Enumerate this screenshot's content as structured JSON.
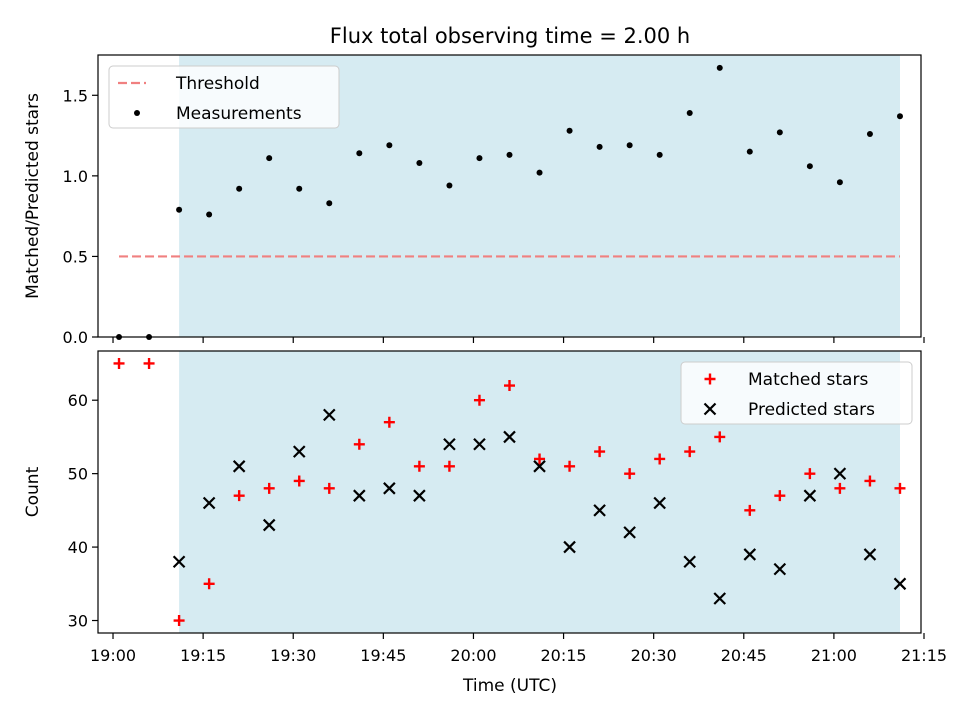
{
  "figure": {
    "title": "Flux total observing time = 2.00 h",
    "xlabel": "Time (UTC)"
  },
  "chart_data": [
    {
      "type": "scatter",
      "ylabel": "Matched/Predicted stars",
      "ylim": [
        0,
        1.75
      ],
      "yticks": [
        0.0,
        0.5,
        1.0,
        1.5
      ],
      "ytick_labels": [
        "0.0",
        "0.5",
        "1.0",
        "1.5"
      ],
      "legend_position": "upper-left",
      "observing_window": {
        "start": "19:11",
        "end": "21:11"
      },
      "threshold": {
        "name": "Threshold",
        "value": 0.5,
        "x_start": "19:01",
        "x_end": "21:11",
        "color": "#f08080"
      },
      "series": [
        {
          "name": "Measurements",
          "color": "#000000",
          "marker": "dot",
          "points": [
            [
              "19:01",
              0.0
            ],
            [
              "19:06",
              0.0
            ],
            [
              "19:11",
              0.79
            ],
            [
              "19:16",
              0.76
            ],
            [
              "19:21",
              0.92
            ],
            [
              "19:26",
              1.11
            ],
            [
              "19:31",
              0.92
            ],
            [
              "19:36",
              0.83
            ],
            [
              "19:41",
              1.14
            ],
            [
              "19:46",
              1.19
            ],
            [
              "19:51",
              1.08
            ],
            [
              "19:56",
              0.94
            ],
            [
              "20:01",
              1.11
            ],
            [
              "20:06",
              1.13
            ],
            [
              "20:11",
              1.02
            ],
            [
              "20:16",
              1.28
            ],
            [
              "20:21",
              1.18
            ],
            [
              "20:26",
              1.19
            ],
            [
              "20:31",
              1.13
            ],
            [
              "20:36",
              1.39
            ],
            [
              "20:41",
              1.67
            ],
            [
              "20:46",
              1.15
            ],
            [
              "20:51",
              1.27
            ],
            [
              "20:56",
              1.06
            ],
            [
              "21:01",
              0.96
            ],
            [
              "21:06",
              1.26
            ],
            [
              "21:11",
              1.37
            ]
          ]
        }
      ]
    },
    {
      "type": "scatter",
      "ylabel": "Count",
      "ylim": [
        28.3,
        66.7
      ],
      "yticks": [
        30,
        40,
        50,
        60
      ],
      "ytick_labels": [
        "30",
        "40",
        "50",
        "60"
      ],
      "legend_position": "upper-right",
      "observing_window": {
        "start": "19:11",
        "end": "21:11"
      },
      "xlim": [
        "18:57.5",
        "21:14.5"
      ],
      "xticks": [
        "19:00",
        "19:15",
        "19:30",
        "19:45",
        "20:00",
        "20:15",
        "20:30",
        "20:45",
        "21:00",
        "21:15"
      ],
      "series": [
        {
          "name": "Matched stars",
          "color": "#ff0000",
          "marker": "plus",
          "points": [
            [
              "19:01",
              65
            ],
            [
              "19:06",
              65
            ],
            [
              "19:11",
              30
            ],
            [
              "19:16",
              35
            ],
            [
              "19:21",
              47
            ],
            [
              "19:26",
              48
            ],
            [
              "19:31",
              49
            ],
            [
              "19:36",
              48
            ],
            [
              "19:41",
              54
            ],
            [
              "19:46",
              57
            ],
            [
              "19:51",
              51
            ],
            [
              "19:56",
              51
            ],
            [
              "20:01",
              60
            ],
            [
              "20:06",
              62
            ],
            [
              "20:11",
              52
            ],
            [
              "20:16",
              51
            ],
            [
              "20:21",
              53
            ],
            [
              "20:26",
              50
            ],
            [
              "20:31",
              52
            ],
            [
              "20:36",
              53
            ],
            [
              "20:41",
              55
            ],
            [
              "20:46",
              45
            ],
            [
              "20:51",
              47
            ],
            [
              "20:56",
              50
            ],
            [
              "21:01",
              48
            ],
            [
              "21:06",
              49
            ],
            [
              "21:11",
              48
            ]
          ]
        },
        {
          "name": "Predicted stars",
          "color": "#000000",
          "marker": "x",
          "points": [
            [
              "19:11",
              38
            ],
            [
              "19:16",
              46
            ],
            [
              "19:21",
              51
            ],
            [
              "19:26",
              43
            ],
            [
              "19:31",
              53
            ],
            [
              "19:36",
              58
            ],
            [
              "19:41",
              47
            ],
            [
              "19:46",
              48
            ],
            [
              "19:51",
              47
            ],
            [
              "19:56",
              54
            ],
            [
              "20:01",
              54
            ],
            [
              "20:06",
              55
            ],
            [
              "20:11",
              51
            ],
            [
              "20:16",
              40
            ],
            [
              "20:21",
              45
            ],
            [
              "20:26",
              42
            ],
            [
              "20:31",
              46
            ],
            [
              "20:36",
              38
            ],
            [
              "20:41",
              33
            ],
            [
              "20:46",
              39
            ],
            [
              "20:51",
              37
            ],
            [
              "20:56",
              47
            ],
            [
              "21:01",
              50
            ],
            [
              "21:06",
              39
            ],
            [
              "21:11",
              35
            ]
          ]
        }
      ]
    }
  ]
}
